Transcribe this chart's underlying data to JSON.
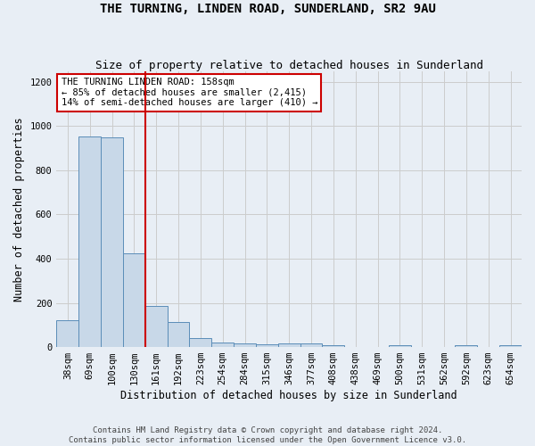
{
  "title": "THE TURNING, LINDEN ROAD, SUNDERLAND, SR2 9AU",
  "subtitle": "Size of property relative to detached houses in Sunderland",
  "xlabel": "Distribution of detached houses by size in Sunderland",
  "ylabel": "Number of detached properties",
  "categories": [
    "38sqm",
    "69sqm",
    "100sqm",
    "130sqm",
    "161sqm",
    "192sqm",
    "223sqm",
    "254sqm",
    "284sqm",
    "315sqm",
    "346sqm",
    "377sqm",
    "408sqm",
    "438sqm",
    "469sqm",
    "500sqm",
    "531sqm",
    "562sqm",
    "592sqm",
    "623sqm",
    "654sqm"
  ],
  "values": [
    120,
    955,
    950,
    425,
    185,
    115,
    40,
    20,
    15,
    12,
    15,
    15,
    10,
    0,
    0,
    10,
    0,
    0,
    10,
    0,
    10
  ],
  "bar_color": "#c8d8e8",
  "bar_edge_color": "#5b8db8",
  "vline_color": "#cc0000",
  "vline_x": 3.5,
  "annotation_text": "THE TURNING LINDEN ROAD: 158sqm\n← 85% of detached houses are smaller (2,415)\n14% of semi-detached houses are larger (410) →",
  "annotation_box_color": "white",
  "annotation_box_edge": "#cc0000",
  "ylim": [
    0,
    1250
  ],
  "yticks": [
    0,
    200,
    400,
    600,
    800,
    1000,
    1200
  ],
  "grid_color": "#cccccc",
  "bg_color": "#e8eef5",
  "footer": "Contains HM Land Registry data © Crown copyright and database right 2024.\nContains public sector information licensed under the Open Government Licence v3.0.",
  "title_fontsize": 10,
  "subtitle_fontsize": 9,
  "xlabel_fontsize": 8.5,
  "ylabel_fontsize": 8.5,
  "tick_fontsize": 7.5,
  "footer_fontsize": 6.5,
  "annot_fontsize": 7.5
}
